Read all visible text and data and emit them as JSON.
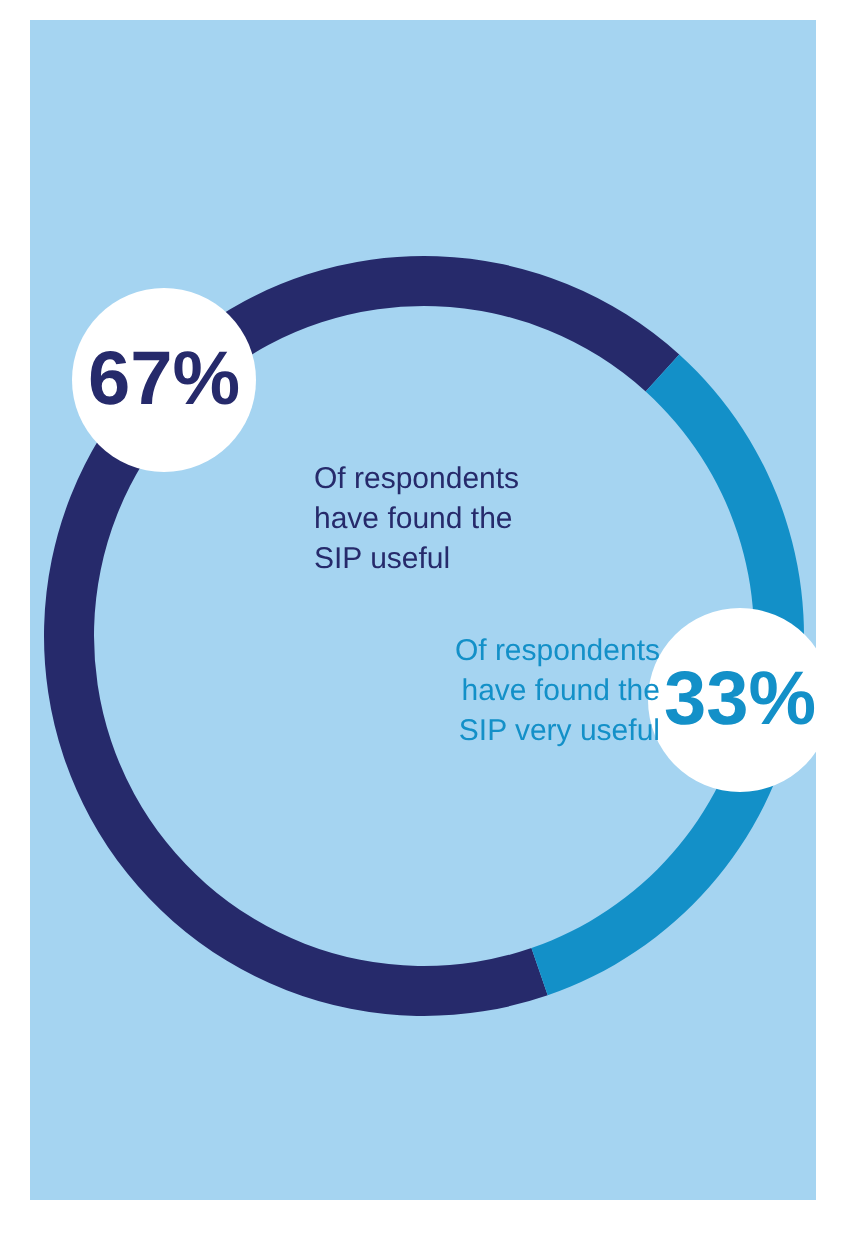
{
  "chart_data": {
    "type": "donut",
    "categories": [
      "Of respondents have found the SIP useful",
      "Of respondents have found the SIP very useful"
    ],
    "values": [
      67,
      33
    ],
    "value_labels": [
      "67%",
      "33%"
    ],
    "colors": [
      "#262a6b",
      "#1390c8"
    ],
    "legend": false
  }
}
